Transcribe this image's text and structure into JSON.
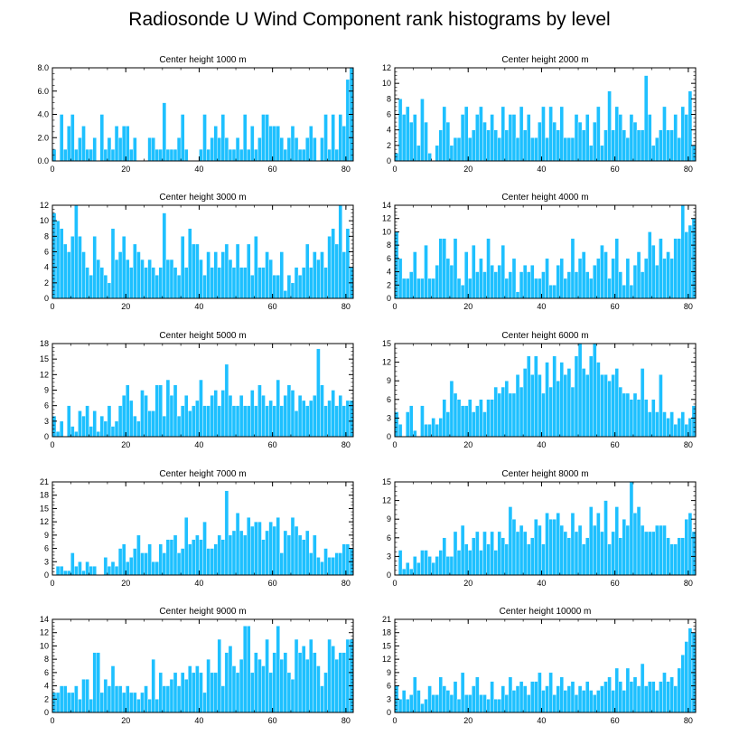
{
  "title": "Radiosonde U Wind Component rank histograms by level",
  "colors": {
    "bar": "#1ec0ff",
    "bar_edge": "#ffffff",
    "axis": "#000000"
  },
  "chart_data": [
    {
      "type": "bar",
      "title": "Center height 1000 m",
      "xlim": [
        0,
        82
      ],
      "ylim": [
        0,
        8
      ],
      "yticks": [
        "0.0",
        "2.0",
        "4.0",
        "6.0",
        "8.0"
      ],
      "ytick_values": [
        0,
        2,
        4,
        6,
        8
      ],
      "xticks": [
        0,
        20,
        40,
        60,
        80
      ],
      "values": [
        1,
        0,
        4,
        1,
        3,
        4,
        1,
        2,
        3,
        1,
        1,
        2,
        0,
        4,
        1,
        2,
        1,
        3,
        2,
        3,
        3,
        1,
        2,
        0,
        0,
        0,
        2,
        2,
        1,
        1,
        5,
        1,
        1,
        1,
        2,
        4,
        1,
        0,
        0,
        0,
        1,
        4,
        1,
        2,
        3,
        2,
        4,
        2,
        1,
        1,
        2,
        1,
        4,
        1,
        3,
        1,
        2,
        4,
        4,
        3,
        3,
        3,
        2,
        1,
        2,
        3,
        2,
        1,
        1,
        2,
        3,
        2,
        0,
        2,
        4,
        1,
        4,
        1,
        4,
        3,
        7,
        8
      ]
    },
    {
      "type": "bar",
      "title": "Center height 2000 m",
      "xlim": [
        0,
        82
      ],
      "ylim": [
        0,
        12
      ],
      "yticks": [
        "0",
        "2",
        "4",
        "6",
        "8",
        "10",
        "12"
      ],
      "ytick_values": [
        0,
        2,
        4,
        6,
        8,
        10,
        12
      ],
      "xticks": [
        0,
        20,
        40,
        60,
        80
      ],
      "values": [
        1,
        8,
        6,
        7,
        5,
        6,
        2,
        8,
        5,
        1,
        0,
        2,
        4,
        7,
        5,
        2,
        3,
        3,
        6,
        7,
        3,
        4,
        6,
        7,
        5,
        4,
        6,
        4,
        3,
        7,
        4,
        6,
        6,
        3,
        7,
        4,
        6,
        3,
        3,
        5,
        7,
        3,
        7,
        5,
        4,
        7,
        3,
        3,
        3,
        6,
        5,
        4,
        6,
        2,
        5,
        7,
        2,
        4,
        9,
        4,
        7,
        6,
        4,
        3,
        6,
        5,
        4,
        4,
        11,
        6,
        2,
        3,
        4,
        7,
        4,
        4,
        6,
        3,
        7,
        6,
        9,
        2
      ]
    },
    {
      "type": "bar",
      "title": "Center height 3000 m",
      "xlim": [
        0,
        82
      ],
      "ylim": [
        0,
        12
      ],
      "yticks": [
        "0",
        "2",
        "4",
        "6",
        "8",
        "10",
        "12"
      ],
      "ytick_values": [
        0,
        2,
        4,
        6,
        8,
        10,
        12
      ],
      "xticks": [
        0,
        20,
        40,
        60,
        80
      ],
      "values": [
        11,
        10,
        9,
        7,
        6,
        8,
        12,
        8,
        6,
        4,
        3,
        8,
        5,
        4,
        3,
        2,
        9,
        5,
        6,
        8,
        5,
        4,
        7,
        6,
        5,
        4,
        5,
        4,
        3,
        4,
        11,
        5,
        5,
        4,
        3,
        8,
        4,
        9,
        7,
        7,
        5,
        3,
        6,
        4,
        6,
        4,
        6,
        7,
        5,
        4,
        7,
        4,
        4,
        7,
        3,
        8,
        4,
        4,
        6,
        5,
        3,
        3,
        6,
        1,
        3,
        2,
        4,
        3,
        4,
        7,
        4,
        6,
        5,
        6,
        4,
        8,
        9,
        7,
        12,
        6,
        9,
        4
      ]
    },
    {
      "type": "bar",
      "title": "Center height 4000 m",
      "xlim": [
        0,
        82
      ],
      "ylim": [
        0,
        14
      ],
      "yticks": [
        "0",
        "2",
        "4",
        "6",
        "8",
        "10",
        "12",
        "14"
      ],
      "ytick_values": [
        0,
        2,
        4,
        6,
        8,
        10,
        12,
        14
      ],
      "xticks": [
        0,
        20,
        40,
        60,
        80
      ],
      "values": [
        10,
        6,
        3,
        3,
        4,
        7,
        3,
        3,
        8,
        3,
        3,
        5,
        9,
        9,
        6,
        5,
        9,
        3,
        2,
        7,
        3,
        8,
        4,
        6,
        4,
        9,
        5,
        4,
        5,
        8,
        3,
        4,
        6,
        1,
        4,
        5,
        4,
        5,
        3,
        3,
        4,
        6,
        2,
        2,
        5,
        6,
        3,
        4,
        9,
        4,
        6,
        7,
        4,
        3,
        5,
        6,
        8,
        7,
        3,
        6,
        9,
        4,
        2,
        6,
        2,
        5,
        7,
        4,
        6,
        10,
        8,
        5,
        9,
        6,
        7,
        6,
        9,
        9,
        14,
        10,
        11,
        12
      ]
    },
    {
      "type": "bar",
      "title": "Center height 5000 m",
      "xlim": [
        0,
        82
      ],
      "ylim": [
        0,
        18
      ],
      "yticks": [
        "0",
        "3",
        "6",
        "9",
        "12",
        "15",
        "18"
      ],
      "ytick_values": [
        0,
        3,
        6,
        9,
        12,
        15,
        18
      ],
      "xticks": [
        0,
        20,
        40,
        60,
        80
      ],
      "values": [
        4,
        1,
        3,
        0,
        6,
        2,
        1,
        5,
        4,
        6,
        2,
        5,
        1,
        4,
        3,
        6,
        2,
        3,
        6,
        8,
        10,
        7,
        4,
        3,
        9,
        8,
        5,
        5,
        10,
        10,
        4,
        11,
        8,
        10,
        4,
        6,
        8,
        5,
        6,
        7,
        11,
        6,
        6,
        8,
        9,
        6,
        9,
        14,
        8,
        6,
        6,
        8,
        6,
        6,
        9,
        6,
        10,
        8,
        6,
        7,
        6,
        11,
        6,
        8,
        10,
        9,
        5,
        8,
        7,
        6,
        7,
        8,
        17,
        10,
        6,
        7,
        9,
        6,
        8,
        6,
        7,
        7
      ]
    },
    {
      "type": "bar",
      "title": "Center height 6000 m",
      "xlim": [
        0,
        82
      ],
      "ylim": [
        0,
        15
      ],
      "yticks": [
        "0",
        "3",
        "6",
        "9",
        "12",
        "15"
      ],
      "ytick_values": [
        0,
        3,
        6,
        9,
        12,
        15
      ],
      "xticks": [
        0,
        20,
        40,
        60,
        80
      ],
      "values": [
        4,
        2,
        0,
        4,
        5,
        1,
        0,
        5,
        2,
        2,
        3,
        2,
        3,
        6,
        4,
        9,
        7,
        6,
        5,
        5,
        6,
        4,
        5,
        6,
        4,
        6,
        6,
        8,
        7,
        8,
        9,
        7,
        7,
        10,
        8,
        11,
        13,
        10,
        13,
        10,
        7,
        12,
        8,
        13,
        9,
        12,
        10,
        11,
        8,
        13,
        15,
        11,
        10,
        13,
        15,
        12,
        10,
        10,
        9,
        10,
        11,
        8,
        7,
        7,
        6,
        7,
        6,
        11,
        6,
        4,
        6,
        4,
        10,
        4,
        3,
        4,
        2,
        3,
        4,
        2,
        3,
        5
      ]
    },
    {
      "type": "bar",
      "title": "Center height 7000 m",
      "xlim": [
        0,
        82
      ],
      "ylim": [
        0,
        21
      ],
      "yticks": [
        "0",
        "3",
        "6",
        "9",
        "12",
        "15",
        "18",
        "21"
      ],
      "ytick_values": [
        0,
        3,
        6,
        9,
        12,
        15,
        18,
        21
      ],
      "xticks": [
        0,
        20,
        40,
        60,
        80
      ],
      "values": [
        0,
        2,
        2,
        1,
        1,
        5,
        2,
        3,
        1,
        3,
        2,
        2,
        0,
        0,
        4,
        2,
        3,
        2,
        6,
        7,
        3,
        4,
        6,
        9,
        5,
        5,
        7,
        3,
        3,
        7,
        5,
        8,
        8,
        9,
        5,
        6,
        13,
        7,
        8,
        9,
        8,
        12,
        6,
        6,
        7,
        9,
        8,
        19,
        9,
        10,
        14,
        10,
        9,
        13,
        11,
        12,
        12,
        8,
        10,
        12,
        11,
        13,
        5,
        10,
        9,
        13,
        11,
        9,
        8,
        10,
        5,
        9,
        4,
        3,
        6,
        4,
        4,
        5,
        5,
        7,
        7,
        6
      ]
    },
    {
      "type": "bar",
      "title": "Center height 8000 m",
      "xlim": [
        0,
        82
      ],
      "ylim": [
        0,
        15
      ],
      "yticks": [
        "0",
        "3",
        "6",
        "9",
        "12",
        "15"
      ],
      "ytick_values": [
        0,
        3,
        6,
        9,
        12,
        15
      ],
      "xticks": [
        0,
        20,
        40,
        60,
        80
      ],
      "values": [
        0,
        4,
        1,
        2,
        1,
        3,
        2,
        4,
        4,
        3,
        2,
        3,
        4,
        6,
        3,
        3,
        7,
        4,
        8,
        5,
        4,
        6,
        7,
        4,
        7,
        5,
        7,
        4,
        7,
        6,
        5,
        11,
        9,
        7,
        8,
        7,
        5,
        6,
        9,
        8,
        5,
        10,
        9,
        9,
        10,
        8,
        7,
        6,
        10,
        7,
        8,
        5,
        6,
        11,
        8,
        10,
        7,
        12,
        5,
        7,
        11,
        6,
        9,
        8,
        15,
        10,
        11,
        8,
        7,
        7,
        7,
        8,
        8,
        8,
        6,
        5,
        5,
        6,
        6,
        9,
        10,
        7
      ]
    },
    {
      "type": "bar",
      "title": "Center height 9000 m",
      "xlim": [
        0,
        82
      ],
      "ylim": [
        0,
        14
      ],
      "yticks": [
        "0",
        "2",
        "4",
        "6",
        "8",
        "10",
        "12",
        "14"
      ],
      "ytick_values": [
        0,
        2,
        4,
        6,
        8,
        10,
        12,
        14
      ],
      "xticks": [
        0,
        20,
        40,
        60,
        80
      ],
      "values": [
        3,
        3,
        4,
        4,
        3,
        3,
        4,
        2,
        5,
        5,
        2,
        9,
        9,
        3,
        5,
        4,
        7,
        4,
        4,
        3,
        4,
        3,
        3,
        2,
        3,
        4,
        2,
        8,
        2,
        6,
        4,
        4,
        5,
        6,
        4,
        6,
        5,
        7,
        6,
        7,
        6,
        3,
        8,
        6,
        6,
        11,
        4,
        9,
        10,
        7,
        6,
        8,
        13,
        13,
        6,
        9,
        8,
        7,
        11,
        6,
        9,
        13,
        8,
        9,
        6,
        5,
        11,
        9,
        10,
        8,
        11,
        9,
        7,
        4,
        6,
        11,
        10,
        8,
        9,
        9,
        11,
        11
      ]
    },
    {
      "type": "bar",
      "title": "Center height 10000 m",
      "xlim": [
        0,
        82
      ],
      "ylim": [
        0,
        21
      ],
      "yticks": [
        "0",
        "3",
        "6",
        "9",
        "12",
        "15",
        "18",
        "21"
      ],
      "ytick_values": [
        0,
        3,
        6,
        9,
        12,
        15,
        18,
        21
      ],
      "xticks": [
        0,
        20,
        40,
        60,
        80
      ],
      "values": [
        6,
        3,
        5,
        3,
        4,
        8,
        5,
        2,
        3,
        6,
        4,
        4,
        8,
        6,
        5,
        4,
        7,
        3,
        9,
        4,
        4,
        6,
        8,
        4,
        4,
        3,
        7,
        3,
        3,
        6,
        4,
        8,
        5,
        6,
        7,
        6,
        4,
        7,
        7,
        9,
        5,
        6,
        9,
        4,
        6,
        8,
        5,
        6,
        7,
        4,
        6,
        5,
        7,
        5,
        4,
        5,
        6,
        7,
        8,
        5,
        10,
        7,
        5,
        10,
        7,
        8,
        6,
        11,
        6,
        7,
        7,
        5,
        7,
        9,
        7,
        8,
        6,
        10,
        13,
        16,
        19,
        18
      ]
    }
  ]
}
